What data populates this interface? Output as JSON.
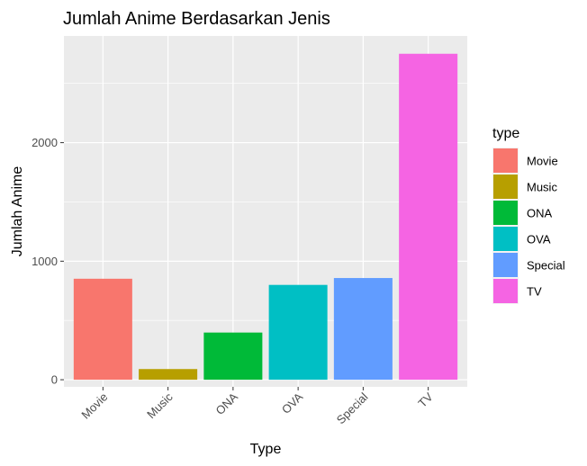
{
  "chart_data": {
    "type": "bar",
    "title": "Jumlah Anime Berdasarkan Jenis",
    "xlabel": "Type",
    "ylabel": "Jumlah Anime",
    "categories": [
      "Movie",
      "Music",
      "ONA",
      "OVA",
      "Special",
      "TV"
    ],
    "values": [
      852,
      90,
      398,
      800,
      858,
      2750
    ],
    "colors": [
      "#F8766D",
      "#B79F00",
      "#00BA38",
      "#00BFC4",
      "#619CFF",
      "#F564E3"
    ],
    "ylim": [
      -60,
      2900
    ],
    "yticks": [
      0,
      1000,
      2000
    ],
    "ytick_labels": [
      "0",
      "1000",
      "2000"
    ],
    "grid": true,
    "legend": {
      "title": "type",
      "placement": "right",
      "items": [
        "Movie",
        "Music",
        "ONA",
        "OVA",
        "Special",
        "TV"
      ]
    }
  }
}
